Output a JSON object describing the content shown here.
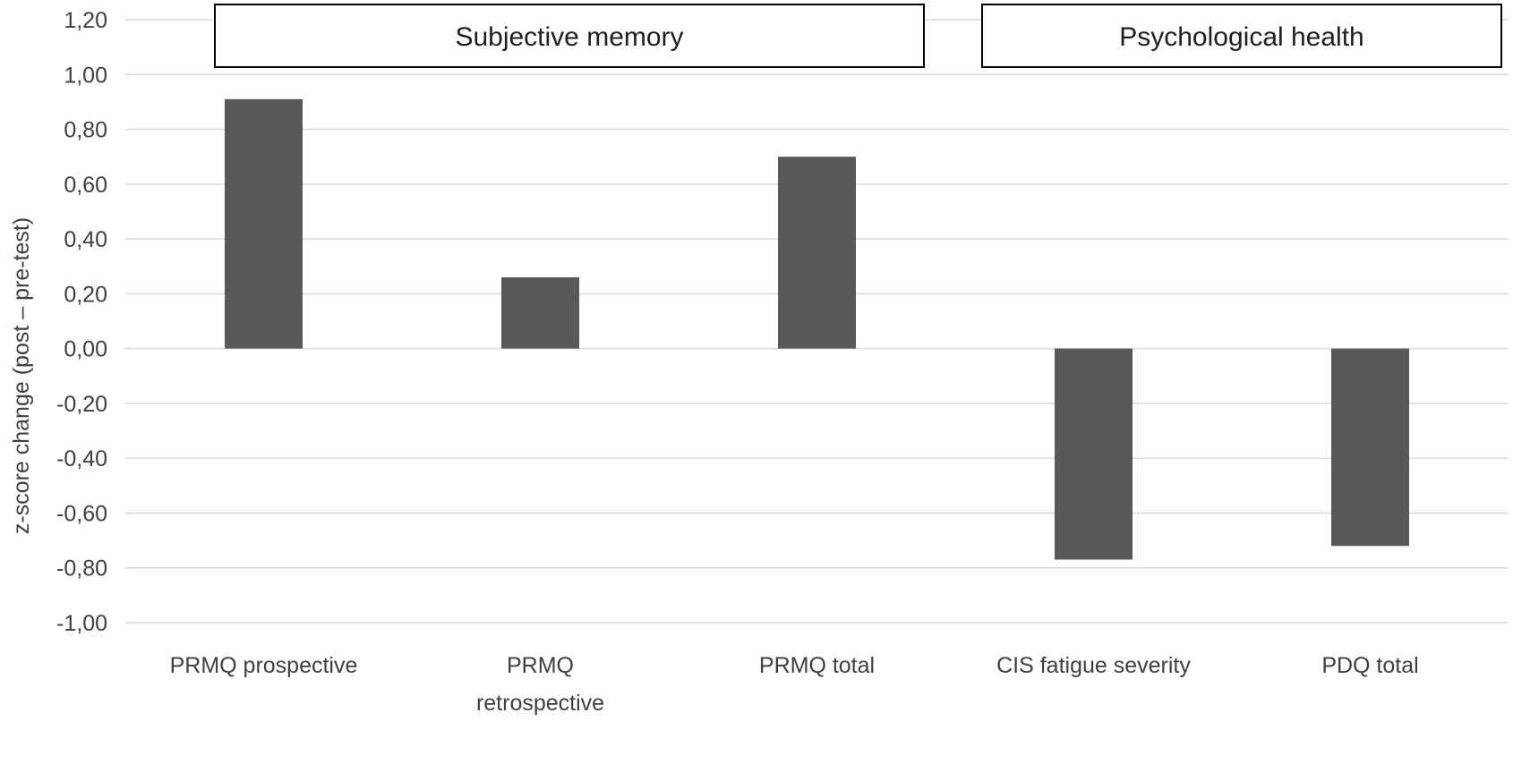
{
  "chart_data": {
    "type": "bar",
    "ylabel": "z-score change (post – pre-test)",
    "ylim": [
      -1.0,
      1.2
    ],
    "ytick_step": 0.2,
    "ytick_labels": [
      "1,20",
      "1,00",
      "0,80",
      "0,60",
      "0,40",
      "0,20",
      "0,00",
      "-0,20",
      "-0,40",
      "-0,60",
      "-0,80",
      "-1,00"
    ],
    "grid": true,
    "bar_color": "#595959",
    "categories": [
      [
        "PRMQ prospective"
      ],
      [
        "PRMQ",
        "retrospective"
      ],
      [
        "PRMQ total"
      ],
      [
        "CIS fatigue severity"
      ],
      [
        "PDQ total"
      ]
    ],
    "values": [
      0.91,
      0.26,
      0.7,
      -0.77,
      -0.72
    ],
    "groups": [
      {
        "label": "Subjective memory",
        "categories": [
          0,
          1,
          2
        ]
      },
      {
        "label": "Psychological health",
        "categories": [
          3,
          4
        ]
      }
    ]
  }
}
